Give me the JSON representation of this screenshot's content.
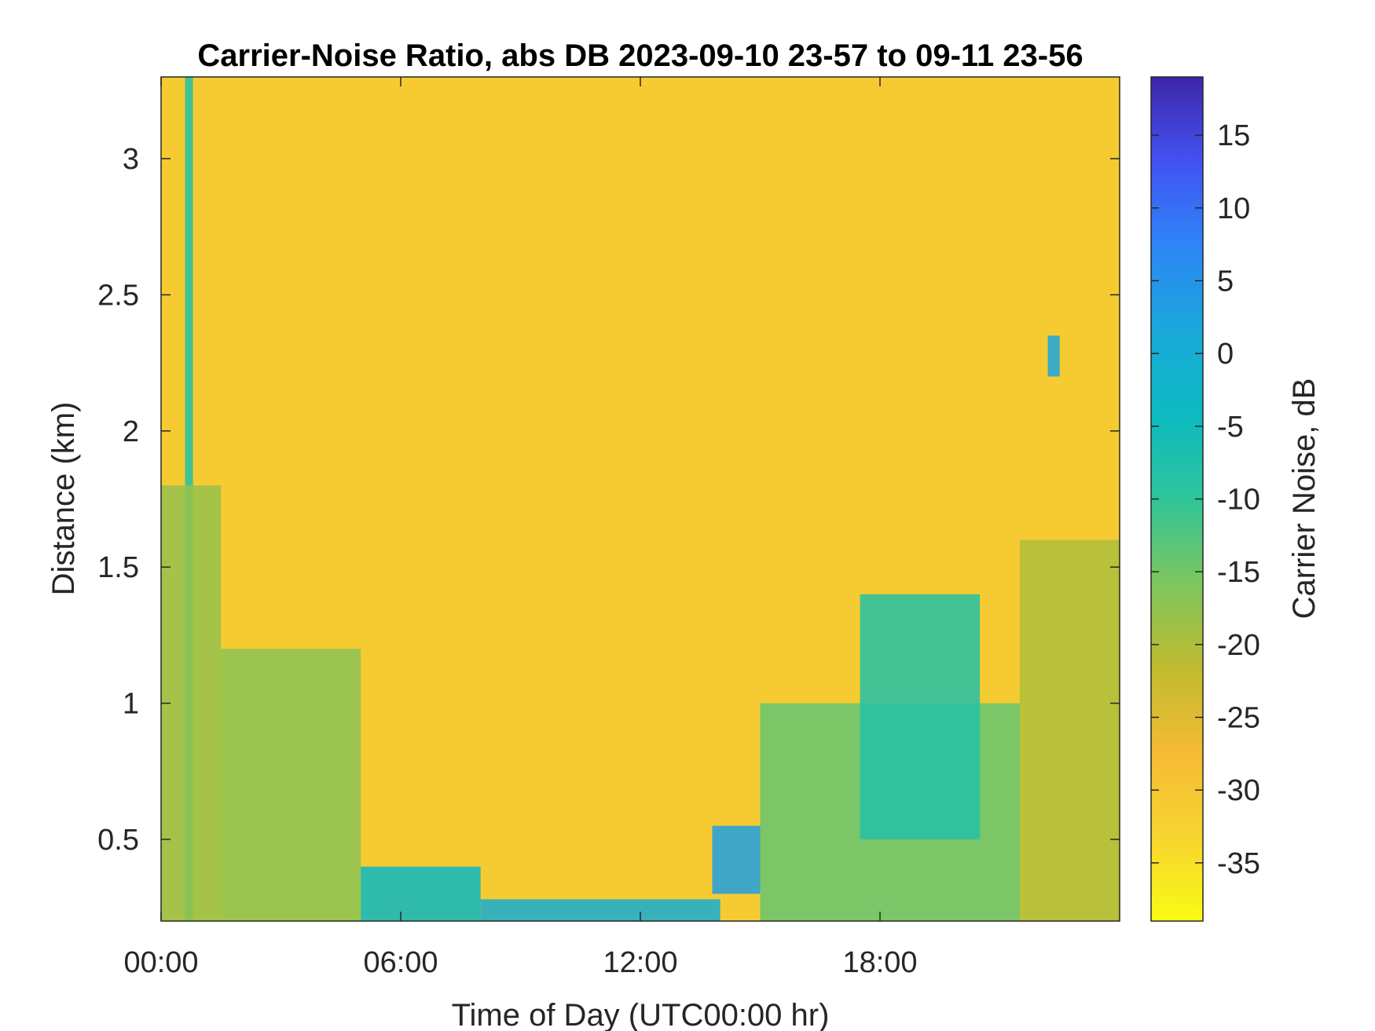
{
  "chart_data": {
    "type": "heatmap",
    "title": "Carrier-Noise Ratio, abs DB 2023-09-10 23-57 to 09-11 23-56",
    "xlabel": "Time of Day (UTC00:00 hr)",
    "ylabel": "Distance (km)",
    "colorbar_label": "Carrier Noise, dB",
    "xlim": [
      0,
      24
    ],
    "ylim": [
      0.2,
      3.3
    ],
    "clim": [
      -39,
      19
    ],
    "x_ticks": [
      0,
      6,
      12,
      18
    ],
    "x_tick_labels": [
      "00:00",
      "06:00",
      "12:00",
      "18:00"
    ],
    "y_ticks": [
      0.5,
      1,
      1.5,
      2,
      2.5,
      3
    ],
    "y_tick_labels": [
      "0.5",
      "1",
      "1.5",
      "2",
      "2.5",
      "3"
    ],
    "colorbar_ticks": [
      15,
      10,
      5,
      0,
      -5,
      -10,
      -15,
      -20,
      -25,
      -30,
      -35
    ],
    "colorbar_tick_labels": [
      "15",
      "10",
      "5",
      "0",
      "-5",
      "-10",
      "-15",
      "-20",
      "-25",
      "-30",
      "-35"
    ],
    "colormap": [
      "#3e26a8",
      "#4352f2",
      "#2d86f7",
      "#1aa8db",
      "#0cbac1",
      "#2fc59a",
      "#7dc65d",
      "#c0bb30",
      "#f5bb34",
      "#f7d42f",
      "#f9fb15"
    ],
    "background_value": -31,
    "features": [
      {
        "x_range": [
          0.6,
          0.8
        ],
        "y_range": [
          0.2,
          3.3
        ],
        "value": -8
      },
      {
        "x_range": [
          0.0,
          1.5
        ],
        "y_range": [
          0.2,
          1.8
        ],
        "value": -18
      },
      {
        "x_range": [
          1.5,
          5.0
        ],
        "y_range": [
          0.2,
          1.2
        ],
        "value": -17
      },
      {
        "x_range": [
          5.0,
          8.0
        ],
        "y_range": [
          0.2,
          0.4
        ],
        "value": -4
      },
      {
        "x_range": [
          8.0,
          14.0
        ],
        "y_range": [
          0.2,
          0.28
        ],
        "value": 0
      },
      {
        "x_range": [
          13.8,
          15.0
        ],
        "y_range": [
          0.3,
          0.55
        ],
        "value": 3
      },
      {
        "x_range": [
          15.0,
          21.5
        ],
        "y_range": [
          0.2,
          1.0
        ],
        "value": -14
      },
      {
        "x_range": [
          17.5,
          20.5
        ],
        "y_range": [
          0.5,
          1.4
        ],
        "value": -8
      },
      {
        "x_range": [
          21.5,
          24.0
        ],
        "y_range": [
          0.2,
          1.6
        ],
        "value": -20
      },
      {
        "x_range": [
          22.2,
          22.5
        ],
        "y_range": [
          2.2,
          2.35
        ],
        "value": 2
      }
    ]
  }
}
